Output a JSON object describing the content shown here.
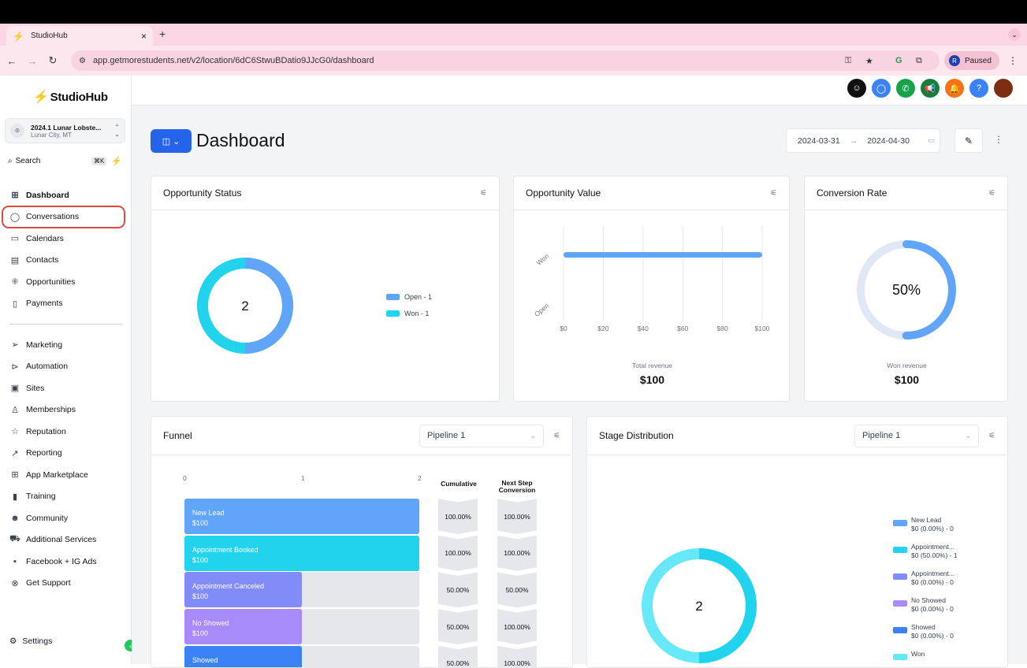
{
  "browser": {
    "tab_title": "StudioHub",
    "url": "app.getmorestudents.net/v2/location/6dC6StwuBDatio9JJcG0/dashboard",
    "profile_status": "Paused",
    "profile_initial": "R"
  },
  "sidebar": {
    "logo": "StudioHub",
    "location_name": "2024.1 Lunar Lobste...",
    "location_city": "Lunar City, MT",
    "search_label": "Search",
    "search_shortcut": "⌘K",
    "items": [
      {
        "label": "Dashboard",
        "icon": "grid-icon"
      },
      {
        "label": "Conversations",
        "icon": "chat-bubble-icon"
      },
      {
        "label": "Calendars",
        "icon": "calendar-icon"
      },
      {
        "label": "Contacts",
        "icon": "contacts-icon"
      },
      {
        "label": "Opportunities",
        "icon": "opportunities-icon"
      },
      {
        "label": "Payments",
        "icon": "payments-icon"
      }
    ],
    "items2": [
      {
        "label": "Marketing",
        "icon": "send-icon"
      },
      {
        "label": "Automation",
        "icon": "automation-icon"
      },
      {
        "label": "Sites",
        "icon": "sites-icon"
      },
      {
        "label": "Memberships",
        "icon": "membership-icon"
      },
      {
        "label": "Reputation",
        "icon": "star-icon"
      },
      {
        "label": "Reporting",
        "icon": "trend-icon"
      },
      {
        "label": "App Marketplace",
        "icon": "apps-icon"
      },
      {
        "label": "Training",
        "icon": "book-icon"
      },
      {
        "label": "Community",
        "icon": "community-icon"
      },
      {
        "label": "Additional Services",
        "icon": "cart-icon"
      },
      {
        "label": "Facebook + IG Ads",
        "icon": "facebook-icon"
      },
      {
        "label": "Get Support",
        "icon": "support-icon"
      }
    ],
    "settings": "Settings"
  },
  "header": {
    "title": "Dashboard",
    "date_from": "2024-03-31",
    "date_to": "2024-04-30"
  },
  "opportunity_status": {
    "title": "Opportunity Status",
    "center": "2",
    "legend": [
      {
        "label": "Open - 1",
        "color": "#60a5fa"
      },
      {
        "label": "Won - 1",
        "color": "#22d3ee"
      }
    ]
  },
  "opportunity_value": {
    "title": "Opportunity Value",
    "footer_label": "Total revenue",
    "footer_value": "$100",
    "chart_data": {
      "type": "bar",
      "categories": [
        "Won",
        "Open"
      ],
      "values": [
        100,
        0
      ],
      "xticks": [
        "$0",
        "$20",
        "$40",
        "$60",
        "$80",
        "$100"
      ],
      "xlim": [
        0,
        100
      ]
    }
  },
  "conversion_rate": {
    "title": "Conversion Rate",
    "center": "50%",
    "fraction": 0.5,
    "footer_label": "Won revenue",
    "footer_value": "$100"
  },
  "funnel": {
    "title": "Funnel",
    "pipeline": "Pipeline 1",
    "axis": [
      "0",
      "1",
      "2"
    ],
    "col_cumulative": "Cumulative",
    "col_next": "Next Step Conversion",
    "stages": [
      {
        "name": "New Lead",
        "value": "$100",
        "count": 2,
        "cumulative": "100.00%",
        "next": "100.00%",
        "color": "#60a5fa"
      },
      {
        "name": "Appointment Booked",
        "value": "$100",
        "count": 2,
        "cumulative": "100.00%",
        "next": "100.00%",
        "color": "#22d3ee"
      },
      {
        "name": "Appointment Canceled",
        "value": "$100",
        "count": 1,
        "cumulative": "50.00%",
        "next": "50.00%",
        "color": "#818cf8"
      },
      {
        "name": "No Showed",
        "value": "$100",
        "count": 1,
        "cumulative": "50.00%",
        "next": "100.00%",
        "color": "#a78bfa"
      },
      {
        "name": "Showed",
        "value": "",
        "count": 1,
        "cumulative": "50.00%",
        "next": "100.00%",
        "color": "#3b82f6"
      }
    ]
  },
  "stage_distribution": {
    "title": "Stage Distribution",
    "pipeline": "Pipeline 1",
    "center": "2",
    "legend": [
      {
        "name": "New Lead",
        "detail": "$0 (0.00%) - 0",
        "color": "#60a5fa"
      },
      {
        "name": "Appointment...",
        "detail": "$0 (50.00%) - 1",
        "color": "#22d3ee"
      },
      {
        "name": "Appointment...",
        "detail": "$0 (0.00%) - 0",
        "color": "#818cf8"
      },
      {
        "name": "No Showed",
        "detail": "$0 (0.00%) - 0",
        "color": "#a78bfa"
      },
      {
        "name": "Showed",
        "detail": "$0 (0.00%) - 0",
        "color": "#3b82f6"
      },
      {
        "name": "Won",
        "detail": "",
        "color": "#67e8f9"
      }
    ]
  }
}
